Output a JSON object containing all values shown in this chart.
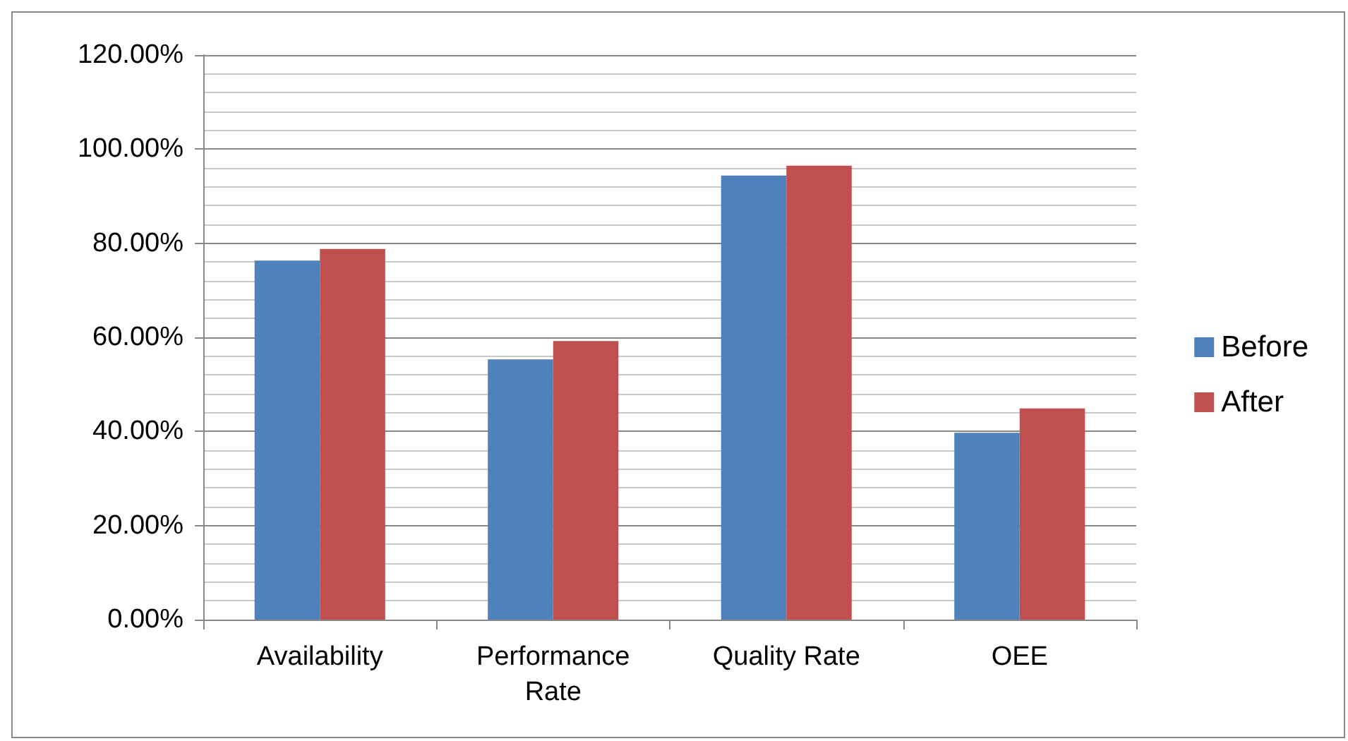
{
  "chart_data": {
    "type": "bar",
    "categories": [
      "Availability",
      "Performance\nRate",
      "Quality Rate",
      "OEE"
    ],
    "series": [
      {
        "name": "Before",
        "color": "#4f81bd",
        "values": [
          76.3,
          55.3,
          94.4,
          39.7
        ]
      },
      {
        "name": "After",
        "color": "#c0504d",
        "values": [
          78.8,
          59.2,
          96.5,
          44.9
        ]
      }
    ],
    "ylim": [
      0,
      120
    ],
    "yticks": [
      {
        "value": 0,
        "label": "0.00%"
      },
      {
        "value": 20,
        "label": "20.00%"
      },
      {
        "value": 40,
        "label": "40.00%"
      },
      {
        "value": 60,
        "label": "60.00%"
      },
      {
        "value": 80,
        "label": "80.00%"
      },
      {
        "value": 100,
        "label": "100.00%"
      },
      {
        "value": 120,
        "label": "120.00%"
      }
    ],
    "grid": true,
    "legend": "right"
  }
}
